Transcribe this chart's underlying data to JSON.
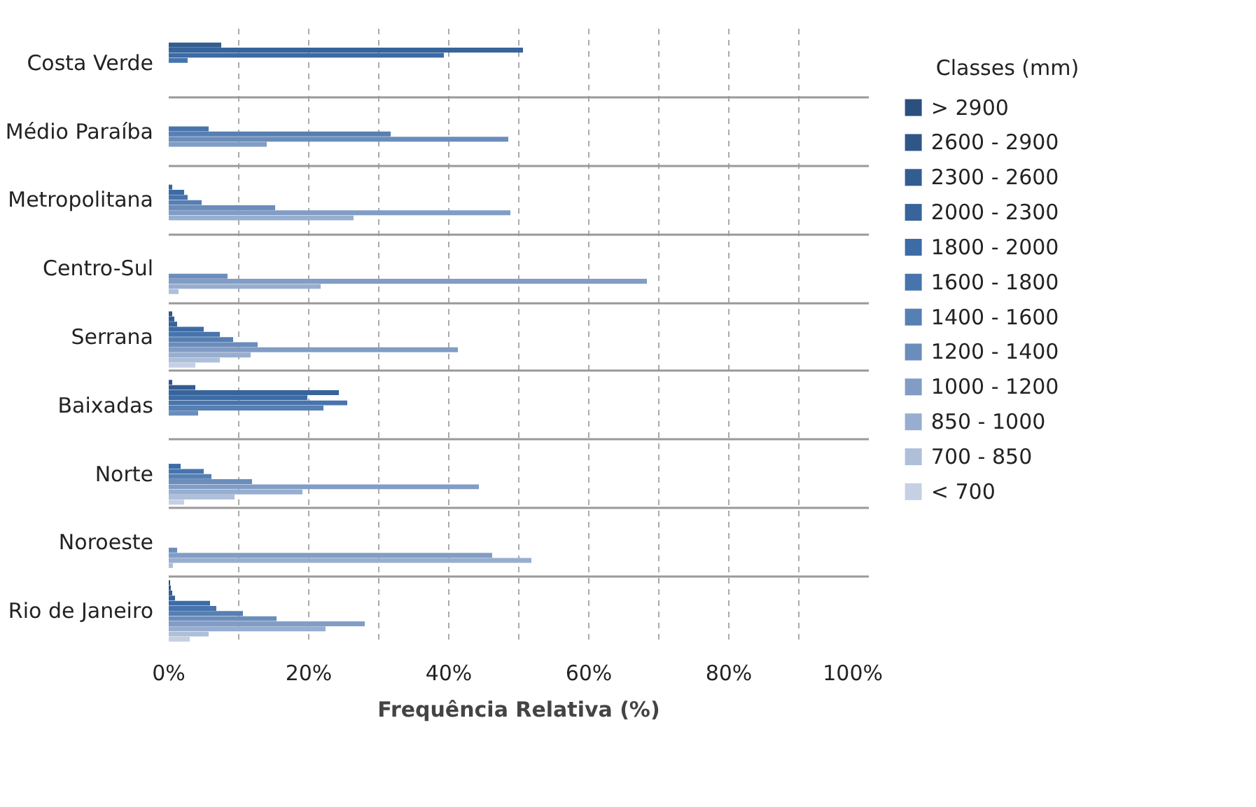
{
  "chart_data": {
    "type": "bar",
    "orientation": "horizontal",
    "xlabel": "Frequência Relativa (%)",
    "legend_title": "Classes (mm)",
    "legend": "right",
    "grid": true,
    "categories": [
      "Costa Verde",
      "Médio Paraíba",
      "Metropolitana",
      "Centro-Sul",
      "Serrana",
      "Baixadas",
      "Norte",
      "Noroeste",
      "Rio de Janeiro"
    ],
    "xlim": [
      0,
      100
    ],
    "xticks": [
      {
        "value": 0,
        "label": "0%"
      },
      {
        "value": 10,
        "label": null
      },
      {
        "value": 20,
        "label": "20%"
      },
      {
        "value": 30,
        "label": null
      },
      {
        "value": 40,
        "label": "40%"
      },
      {
        "value": 50,
        "label": null
      },
      {
        "value": 60,
        "label": "60%"
      },
      {
        "value": 70,
        "label": null
      },
      {
        "value": 80,
        "label": "80%"
      },
      {
        "value": 90,
        "label": null
      },
      {
        "value": 100,
        "label": "100%"
      }
    ],
    "series": [
      {
        "name": "> 2900",
        "color": "#2b4f7e",
        "values": [
          0,
          0,
          0,
          0,
          0,
          0,
          0,
          0,
          0.2
        ]
      },
      {
        "name": "2600 - 2900",
        "color": "#2f5687",
        "values": [
          0,
          0,
          0,
          0,
          0.5,
          0.5,
          0,
          0,
          0.3
        ]
      },
      {
        "name": "2300 - 2600",
        "color": "#335d91",
        "values": [
          7.5,
          0,
          0,
          0,
          0.8,
          3.8,
          0,
          0,
          0.5
        ]
      },
      {
        "name": "2000 - 2300",
        "color": "#37649b",
        "values": [
          50.6,
          0,
          0.5,
          0,
          1.2,
          24.3,
          0,
          0,
          0.9
        ]
      },
      {
        "name": "1800 - 2000",
        "color": "#3c6ba5",
        "values": [
          39.3,
          0,
          2.2,
          0,
          5.0,
          19.8,
          1.7,
          0,
          5.9
        ]
      },
      {
        "name": "1600 - 1800",
        "color": "#4774ad",
        "values": [
          2.7,
          5.7,
          2.7,
          0,
          7.3,
          25.5,
          5.0,
          0,
          6.8
        ]
      },
      {
        "name": "1400 - 1600",
        "color": "#567fb3",
        "values": [
          0,
          31.7,
          4.7,
          0,
          9.2,
          22.1,
          6.1,
          0,
          10.6
        ]
      },
      {
        "name": "1200 - 1400",
        "color": "#6b8dbb",
        "values": [
          0,
          48.5,
          15.2,
          8.4,
          12.7,
          4.2,
          11.9,
          1.2,
          15.4
        ]
      },
      {
        "name": "1000 - 1200",
        "color": "#819dc5",
        "values": [
          0,
          14.0,
          48.8,
          68.3,
          41.3,
          0,
          44.3,
          46.2,
          28.0
        ]
      },
      {
        "name": "850 - 1000",
        "color": "#97aed0",
        "values": [
          0,
          0,
          26.4,
          21.7,
          11.7,
          0,
          19.1,
          51.8,
          22.4
        ]
      },
      {
        "name": "700 - 850",
        "color": "#aebfda",
        "values": [
          0,
          0,
          0,
          1.4,
          7.3,
          0,
          9.4,
          0.6,
          5.7
        ]
      },
      {
        "name": "< 700",
        "color": "#c5d0e4",
        "values": [
          0,
          0,
          0,
          0,
          3.8,
          0,
          2.2,
          0,
          3.0
        ]
      }
    ]
  }
}
